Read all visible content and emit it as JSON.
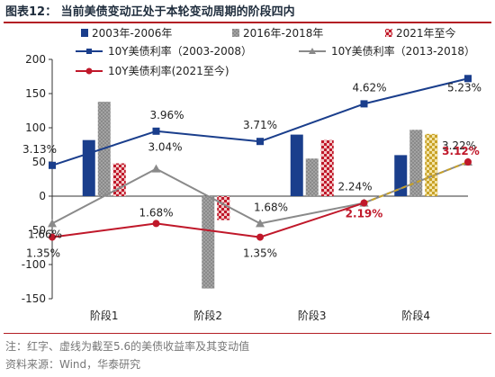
{
  "header": {
    "title": "图表12： 当前美债变动正处于本轮变动周期的阶段四内"
  },
  "footer": {
    "note": "注：红字、虚线为截至5.6的美债收益率及其变动值",
    "source": "资料来源：Wind，华泰研究"
  },
  "colors": {
    "navy": "#1a3e8c",
    "gray": "#8a8a8a",
    "red": "#c0182a",
    "gold": "#c9a227",
    "title_rule": "#b31f24"
  },
  "chart_data": {
    "type": "bar",
    "categories": [
      "阶段1",
      "阶段2",
      "阶段3",
      "阶段4"
    ],
    "ylim": [
      -150,
      200
    ],
    "yticks": [
      -150,
      -100,
      -50,
      0,
      50,
      100,
      150,
      200
    ],
    "grid": false,
    "legend_position": "top",
    "bar_series": [
      {
        "name": "2003年-2006年",
        "values": [
          82,
          0,
          90,
          60
        ],
        "color": "#1a3e8c",
        "pattern": "solid"
      },
      {
        "name": "2016年-2018年",
        "values": [
          138,
          -135,
          55,
          97
        ],
        "color": "#8a8a8a",
        "pattern": "dots"
      },
      {
        "name": "2021年至今",
        "values": [
          48,
          -35,
          82,
          91
        ],
        "color": "#c0182a",
        "pattern": "checker",
        "dashed_last": true
      }
    ],
    "line_series": [
      {
        "name": "10Y美债利率（2003-2008）",
        "values": [
          45,
          95,
          80,
          135,
          172
        ],
        "color": "#1a3e8c",
        "marker": "square",
        "labels": [
          "3.13%",
          "3.96%",
          "3.71%",
          "4.62%",
          "5.23%"
        ]
      },
      {
        "name": "10Y美债利率（2013-2018）",
        "values": [
          -40,
          40,
          -40,
          -10,
          50
        ],
        "color": "#8a8a8a",
        "marker": "triangle",
        "labels": [
          "1.66%",
          "3.04%",
          "1.68%",
          "2.24%",
          "3.22%"
        ]
      },
      {
        "name": "10Y美债利率(2021至今)",
        "values": [
          -60,
          -40,
          -60,
          -10,
          50
        ],
        "color": "#c0182a",
        "marker": "circle",
        "labels": [
          "1.35%",
          "1.68%",
          "1.35%",
          "2.19%",
          "3.12%"
        ],
        "red_labels": [
          3,
          4
        ],
        "dashed_last": true
      }
    ]
  }
}
